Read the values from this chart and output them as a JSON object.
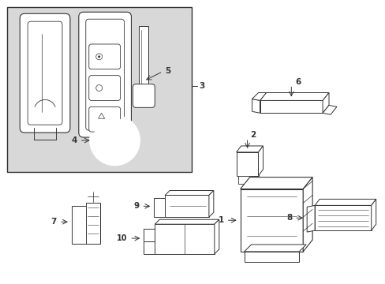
{
  "bg_color": "#ffffff",
  "box_bg": "#d8d8d8",
  "line_color": "#333333",
  "lw": 0.7,
  "fig_w": 4.89,
  "fig_h": 3.6,
  "dpi": 100
}
